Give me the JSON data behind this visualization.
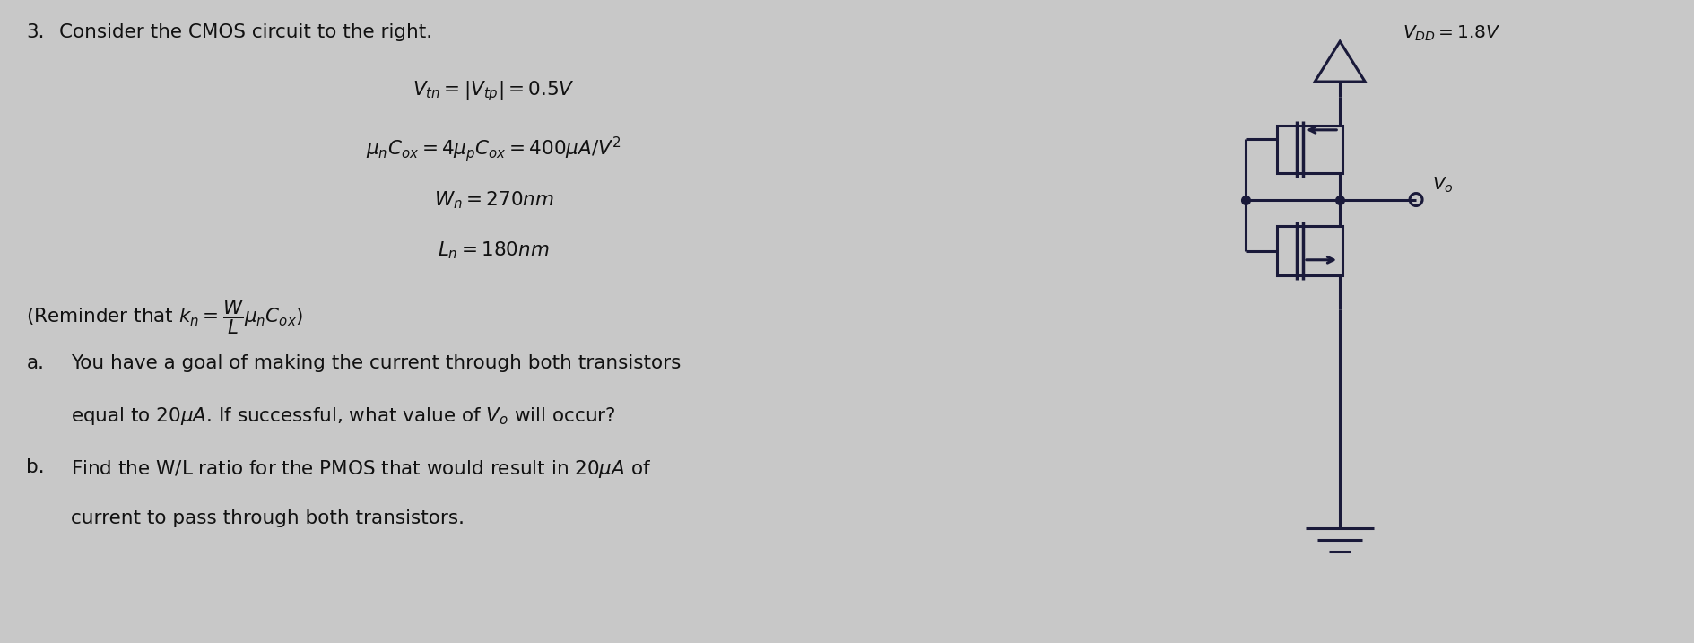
{
  "title_num": "3.",
  "title_text": "Consider the CMOS circuit to the right.",
  "eq1": "$V_{tn} = |V_{tp}| = 0.5V$",
  "eq2": "$\\mu_n C_{ox} = 4\\mu_p C_{ox} = 400\\mu A/V^2$",
  "eq3": "$W_n = 270nm$",
  "eq4": "$L_n = 180nm$",
  "reminder": "(Reminder that $k_n = \\dfrac{W}{L}\\mu_n C_{ox}$)",
  "part_a_label": "a.",
  "part_a_text": "You have a goal of making the current through both transistors",
  "part_a2": "equal to $20\\mu A$. If successful, what value of $V_o$ will occur?",
  "part_b_label": "b.",
  "part_b_text": "Find the W/L ratio for the PMOS that would result in $20\\mu A$ of",
  "part_b2": "current to pass through both transistors.",
  "vdd_label": "$V_{DD} = 1.8V$",
  "vo_label": "$V_o$",
  "bg_color": "#c8c8c8",
  "text_color": "#111111",
  "circuit_color": "#1a1a3a"
}
